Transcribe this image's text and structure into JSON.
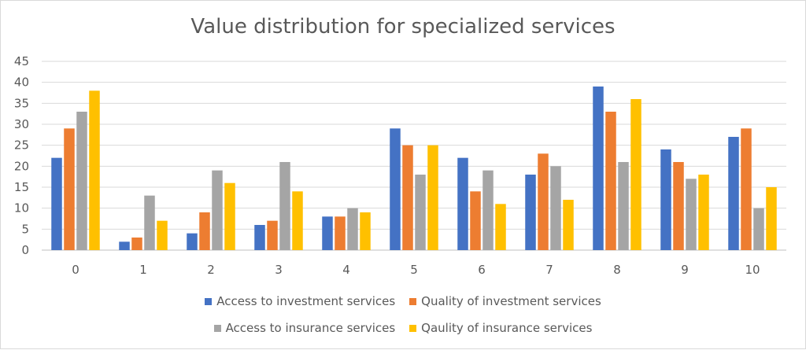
{
  "chart_data": {
    "type": "bar",
    "title": "Value distribution for specialized services",
    "categories": [
      "0",
      "1",
      "2",
      "3",
      "4",
      "5",
      "6",
      "7",
      "8",
      "9",
      "10"
    ],
    "ylim": [
      0,
      45
    ],
    "yticks": [
      "0",
      "5",
      "10",
      "15",
      "20",
      "25",
      "30",
      "35",
      "40",
      "45"
    ],
    "grid": true,
    "legend_position": "bottom",
    "series": [
      {
        "name": "Access to investment services",
        "color": "#4472C4",
        "values": [
          22,
          2,
          4,
          6,
          8,
          29,
          22,
          18,
          39,
          24,
          27
        ]
      },
      {
        "name": "Quality of investment services",
        "color": "#ED7D31",
        "values": [
          29,
          3,
          9,
          7,
          8,
          25,
          14,
          23,
          33,
          21,
          29
        ]
      },
      {
        "name": "Access to insurance services",
        "color": "#A5A5A5",
        "values": [
          33,
          13,
          19,
          21,
          10,
          18,
          19,
          20,
          21,
          17,
          10
        ]
      },
      {
        "name": "Qaulity of insurance services",
        "color": "#FFC000",
        "values": [
          38,
          7,
          16,
          14,
          9,
          25,
          11,
          12,
          36,
          18,
          15
        ]
      }
    ]
  }
}
